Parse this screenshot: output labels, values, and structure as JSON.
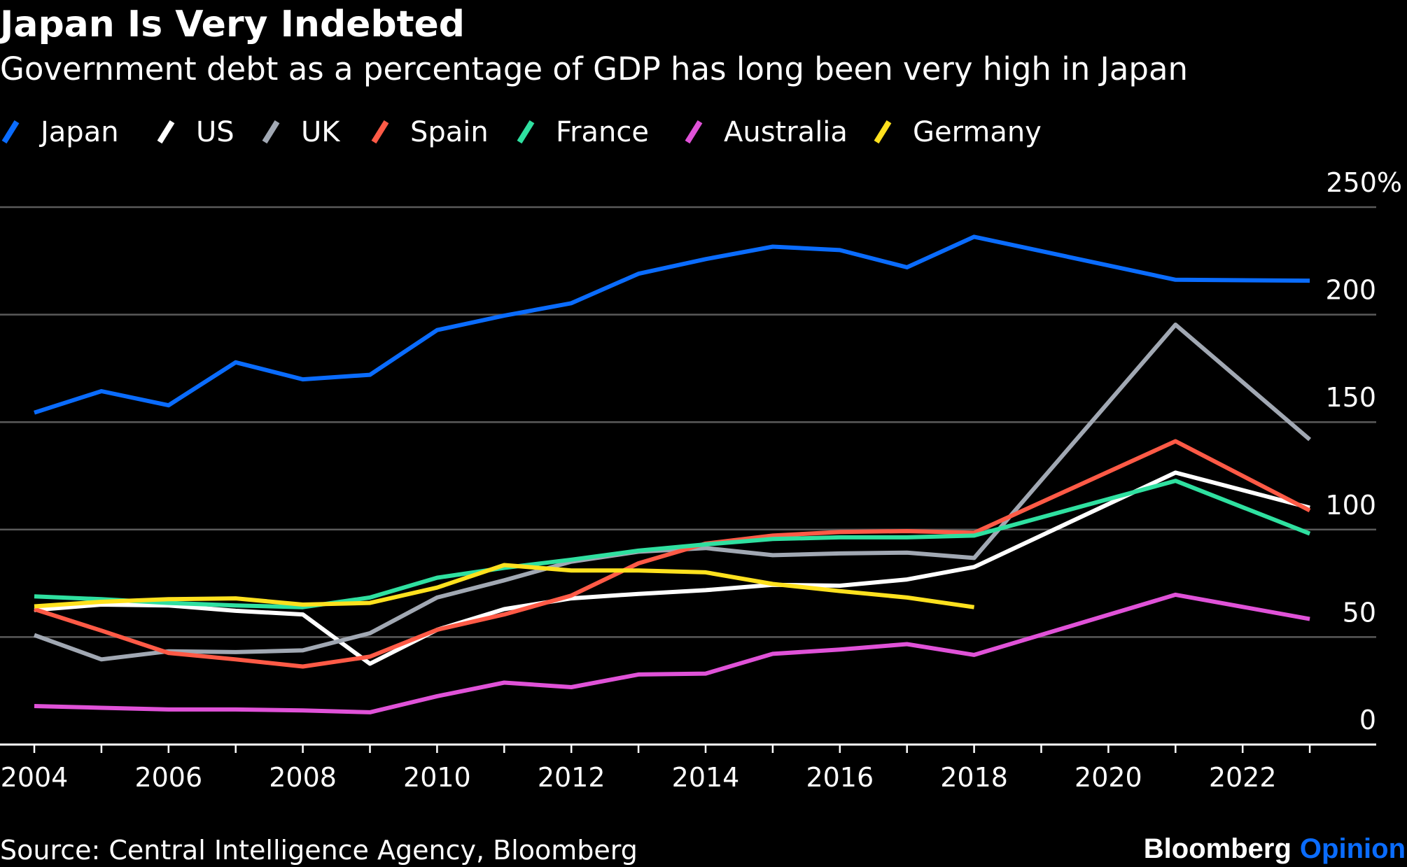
{
  "chart_data": {
    "type": "line",
    "title": "Japan Is Very Indebted",
    "subtitle": "Government debt as a percentage of GDP has long been very high in Japan",
    "x": [
      2004,
      2005,
      2006,
      2007,
      2008,
      2009,
      2010,
      2011,
      2012,
      2013,
      2014,
      2015,
      2016,
      2017,
      2018,
      2019,
      2020,
      2021,
      2022,
      2023
    ],
    "xticks": [
      "2004",
      "2006",
      "2008",
      "2010",
      "2012",
      "2014",
      "2016",
      "2018",
      "2020",
      "2022"
    ],
    "yticks": [
      "0",
      "50",
      "100",
      "150",
      "200",
      "250%"
    ],
    "ylim": [
      0,
      250
    ],
    "grid": true,
    "legend_position": "top-left",
    "series": [
      {
        "name": "Japan",
        "color": "#0a6cff",
        "values": [
          154.4,
          164.4,
          157.8,
          177.8,
          169.9,
          172,
          192.8,
          199.5,
          205.3,
          219,
          225.8,
          231.6,
          230,
          222,
          236.2,
          null,
          null,
          216.2,
          null,
          215.8
        ]
      },
      {
        "name": "US",
        "color": "#ffffff",
        "values": [
          62.6,
          65.1,
          64.7,
          62.2,
          60.5,
          37.6,
          53.4,
          63,
          68,
          70.1,
          71.8,
          74.3,
          73.9,
          76.8,
          82.6,
          null,
          null,
          126.5,
          null,
          110.2
        ]
      },
      {
        "name": "UK",
        "color": "#a1a8b3",
        "values": [
          50.9,
          39.6,
          43.4,
          43,
          43.8,
          51.8,
          68.4,
          76.4,
          85.1,
          89.7,
          91.4,
          88.1,
          88.9,
          89.3,
          86.8,
          null,
          null,
          195.3,
          null,
          141.9
        ]
      },
      {
        "name": "Spain",
        "color": "#ff5a46",
        "values": [
          63,
          53,
          42.6,
          39.6,
          36.3,
          40.9,
          53.4,
          60.5,
          69.3,
          84.3,
          93.5,
          97.2,
          98.9,
          99.3,
          98.5,
          null,
          null,
          141.1,
          null,
          108.9
        ]
      },
      {
        "name": "France",
        "color": "#2fe0a0",
        "values": [
          68.9,
          67.6,
          65.9,
          64.7,
          63.9,
          68.4,
          77.6,
          82.2,
          86,
          90.2,
          93.1,
          95.6,
          96.4,
          96.4,
          97.2,
          null,
          null,
          122.7,
          null,
          98.1
        ]
      },
      {
        "name": "Australia",
        "color": "#e052d8",
        "values": [
          17.9,
          17.1,
          16.3,
          16.3,
          15.9,
          15,
          22.5,
          28.8,
          26.7,
          32.6,
          33,
          42.2,
          44.2,
          46.7,
          41.7,
          null,
          null,
          69.7,
          null,
          58.4
        ]
      },
      {
        "name": "Germany",
        "color": "#ffe11e",
        "values": [
          64.3,
          66.4,
          67.6,
          68,
          65.1,
          65.9,
          73,
          83.5,
          81,
          81,
          80.1,
          74.7,
          71.4,
          68.4,
          63.9,
          null,
          null,
          null,
          null,
          null
        ]
      }
    ],
    "source": "Source: Central Intelligence Agency, Bloomberg"
  },
  "branding": {
    "brand": "Bloomberg",
    "product": "Opinion",
    "product_color": "#0a6cff"
  }
}
